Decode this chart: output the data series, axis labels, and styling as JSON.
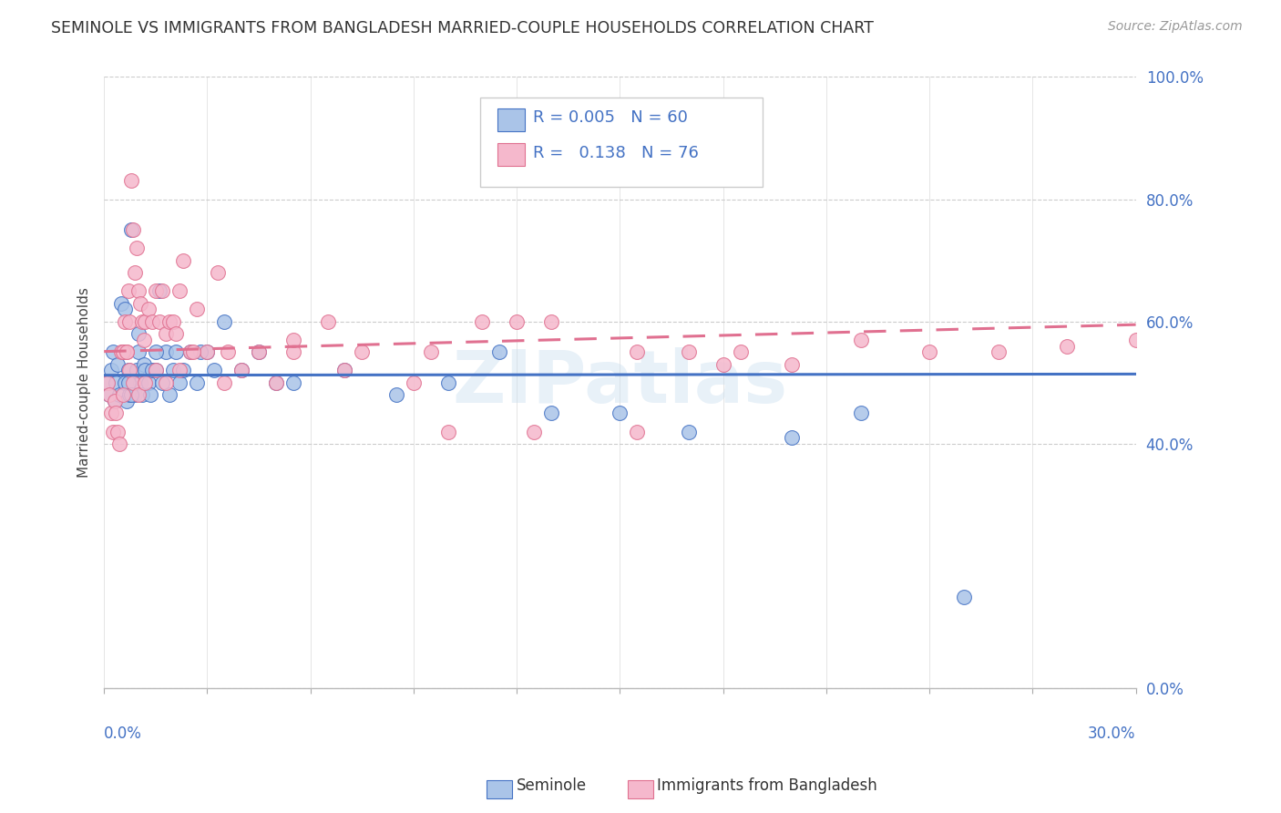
{
  "title": "SEMINOLE VS IMMIGRANTS FROM BANGLADESH MARRIED-COUPLE HOUSEHOLDS CORRELATION CHART",
  "source": "Source: ZipAtlas.com",
  "ylabel": "Married-couple Households",
  "ytick_vals": [
    0,
    40,
    60,
    80,
    100
  ],
  "xlim": [
    0,
    30
  ],
  "ylim": [
    0,
    100
  ],
  "color_blue": "#aac4e8",
  "color_pink": "#f5b8cc",
  "color_blue_line": "#4472c4",
  "color_pink_line": "#e07090",
  "color_blue_dark": "#4472c4",
  "color_pink_dark": "#e07090",
  "color_text_blue": "#4472c4",
  "background": "#ffffff",
  "grid_color": "#cccccc",
  "seminole_x": [
    0.1,
    0.15,
    0.2,
    0.25,
    0.3,
    0.35,
    0.4,
    0.45,
    0.5,
    0.55,
    0.6,
    0.65,
    0.7,
    0.75,
    0.8,
    0.85,
    0.9,
    0.95,
    1.0,
    1.05,
    1.1,
    1.15,
    1.2,
    1.3,
    1.35,
    1.4,
    1.5,
    1.6,
    1.7,
    1.8,
    1.9,
    2.0,
    2.1,
    2.2,
    2.3,
    2.5,
    2.7,
    3.0,
    3.2,
    3.5,
    4.0,
    4.5,
    5.0,
    5.5,
    7.0,
    8.5,
    10.0,
    11.5,
    13.0,
    15.0,
    17.0,
    20.0,
    22.0,
    25.0,
    0.6,
    0.7,
    0.8,
    1.0,
    1.5,
    2.8
  ],
  "seminole_y": [
    50,
    48,
    52,
    55,
    47,
    50,
    53,
    48,
    63,
    55,
    50,
    47,
    52,
    48,
    75,
    50,
    48,
    52,
    55,
    50,
    48,
    53,
    52,
    50,
    48,
    52,
    52,
    65,
    50,
    55,
    48,
    52,
    55,
    50,
    52,
    55,
    50,
    55,
    52,
    60,
    52,
    55,
    50,
    50,
    52,
    48,
    50,
    55,
    45,
    45,
    42,
    41,
    45,
    15,
    62,
    50,
    48,
    58,
    55,
    55
  ],
  "bangladesh_x": [
    0.1,
    0.15,
    0.2,
    0.25,
    0.3,
    0.35,
    0.4,
    0.45,
    0.5,
    0.55,
    0.6,
    0.65,
    0.7,
    0.75,
    0.8,
    0.85,
    0.9,
    0.95,
    1.0,
    1.05,
    1.1,
    1.15,
    1.2,
    1.3,
    1.4,
    1.5,
    1.6,
    1.7,
    1.8,
    1.9,
    2.0,
    2.1,
    2.2,
    2.3,
    2.5,
    2.7,
    3.0,
    3.3,
    3.6,
    4.0,
    4.5,
    5.0,
    5.5,
    6.5,
    7.5,
    9.0,
    11.0,
    13.0,
    15.5,
    18.0,
    0.55,
    0.65,
    0.75,
    0.85,
    1.0,
    1.2,
    1.5,
    1.8,
    2.2,
    2.6,
    3.5,
    5.5,
    7.0,
    9.5,
    12.0,
    17.0,
    20.0,
    22.0,
    24.0,
    26.0,
    28.0,
    30.0,
    10.0,
    12.5,
    15.5,
    18.5
  ],
  "bangladesh_y": [
    50,
    48,
    45,
    42,
    47,
    45,
    42,
    40,
    55,
    48,
    60,
    55,
    65,
    60,
    83,
    75,
    68,
    72,
    65,
    63,
    60,
    57,
    60,
    62,
    60,
    65,
    60,
    65,
    58,
    60,
    60,
    58,
    65,
    70,
    55,
    62,
    55,
    68,
    55,
    52,
    55,
    50,
    55,
    60,
    55,
    50,
    60,
    60,
    55,
    53,
    55,
    55,
    52,
    50,
    48,
    50,
    52,
    50,
    52,
    55,
    50,
    57,
    52,
    55,
    60,
    55,
    53,
    57,
    55,
    55,
    56,
    57,
    42,
    42,
    42,
    55
  ]
}
